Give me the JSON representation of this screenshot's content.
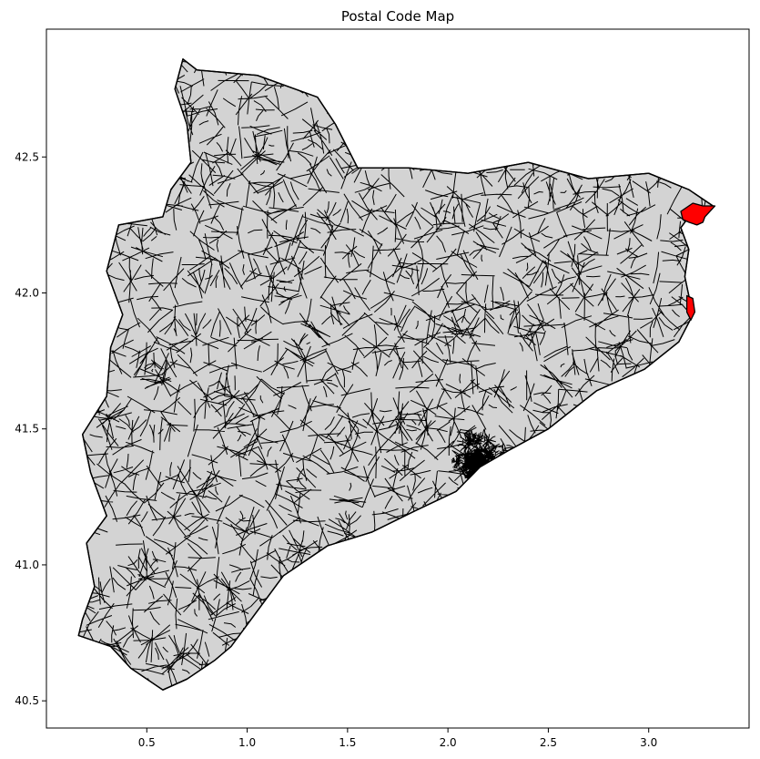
{
  "title": "Postal Code Map",
  "map": {
    "base_fill": "#d3d3d3",
    "highlight_fill": "#ff0000",
    "edge_color": "#000000",
    "background": "#ffffff",
    "highlighted_regions": 2
  },
  "chart_data": {
    "type": "map",
    "title": "Postal Code Map",
    "xlabel": "",
    "ylabel": "",
    "xlim": [
      0.0,
      3.5
    ],
    "ylim": [
      40.4,
      42.97
    ],
    "x_ticks": [
      0.5,
      1.0,
      1.5,
      2.0,
      2.5,
      3.0
    ],
    "x_tick_labels": [
      "0.5",
      "1.0",
      "1.5",
      "2.0",
      "2.5",
      "3.0"
    ],
    "y_ticks": [
      40.5,
      41.0,
      41.5,
      42.0,
      42.5
    ],
    "y_tick_labels": [
      "40.5",
      "41.0",
      "41.5",
      "42.0",
      "42.5"
    ],
    "grid": false,
    "legend": "none",
    "outline": [
      [
        0.16,
        40.74
      ],
      [
        0.32,
        40.7
      ],
      [
        0.42,
        40.62
      ],
      [
        0.58,
        40.54
      ],
      [
        0.7,
        40.58
      ],
      [
        0.84,
        40.65
      ],
      [
        0.92,
        40.7
      ],
      [
        1.04,
        40.82
      ],
      [
        1.18,
        40.96
      ],
      [
        1.4,
        41.07
      ],
      [
        1.62,
        41.12
      ],
      [
        1.84,
        41.2
      ],
      [
        2.04,
        41.27
      ],
      [
        2.16,
        41.36
      ],
      [
        2.3,
        41.42
      ],
      [
        2.5,
        41.5
      ],
      [
        2.74,
        41.64
      ],
      [
        2.98,
        41.72
      ],
      [
        3.15,
        41.82
      ],
      [
        3.22,
        41.92
      ],
      [
        3.18,
        42.06
      ],
      [
        3.2,
        42.16
      ],
      [
        3.16,
        42.24
      ],
      [
        3.22,
        42.3
      ],
      [
        3.32,
        42.32
      ],
      [
        3.2,
        42.38
      ],
      [
        3.0,
        42.44
      ],
      [
        2.7,
        42.42
      ],
      [
        2.4,
        42.48
      ],
      [
        2.1,
        42.44
      ],
      [
        1.8,
        42.46
      ],
      [
        1.55,
        42.46
      ],
      [
        1.44,
        42.62
      ],
      [
        1.35,
        42.72
      ],
      [
        1.05,
        42.8
      ],
      [
        0.75,
        42.82
      ],
      [
        0.68,
        42.86
      ],
      [
        0.64,
        42.75
      ],
      [
        0.7,
        42.62
      ],
      [
        0.72,
        42.48
      ],
      [
        0.62,
        42.38
      ],
      [
        0.58,
        42.28
      ],
      [
        0.36,
        42.25
      ],
      [
        0.3,
        42.08
      ],
      [
        0.38,
        41.92
      ],
      [
        0.32,
        41.8
      ],
      [
        0.3,
        41.62
      ],
      [
        0.18,
        41.48
      ],
      [
        0.22,
        41.34
      ],
      [
        0.3,
        41.18
      ],
      [
        0.2,
        41.08
      ],
      [
        0.24,
        40.92
      ],
      [
        0.18,
        40.8
      ]
    ],
    "highlighted_regions": [
      {
        "label": "",
        "points": [
          [
            3.16,
            42.3
          ],
          [
            3.22,
            42.33
          ],
          [
            3.27,
            42.32
          ],
          [
            3.33,
            42.32
          ],
          [
            3.28,
            42.28
          ],
          [
            3.27,
            42.26
          ],
          [
            3.24,
            42.25
          ],
          [
            3.2,
            42.26
          ],
          [
            3.17,
            42.27
          ]
        ]
      },
      {
        "label": "",
        "points": [
          [
            3.19,
            41.99
          ],
          [
            3.22,
            41.98
          ],
          [
            3.23,
            41.93
          ],
          [
            3.21,
            41.9
          ],
          [
            3.19,
            41.93
          ]
        ]
      }
    ]
  }
}
